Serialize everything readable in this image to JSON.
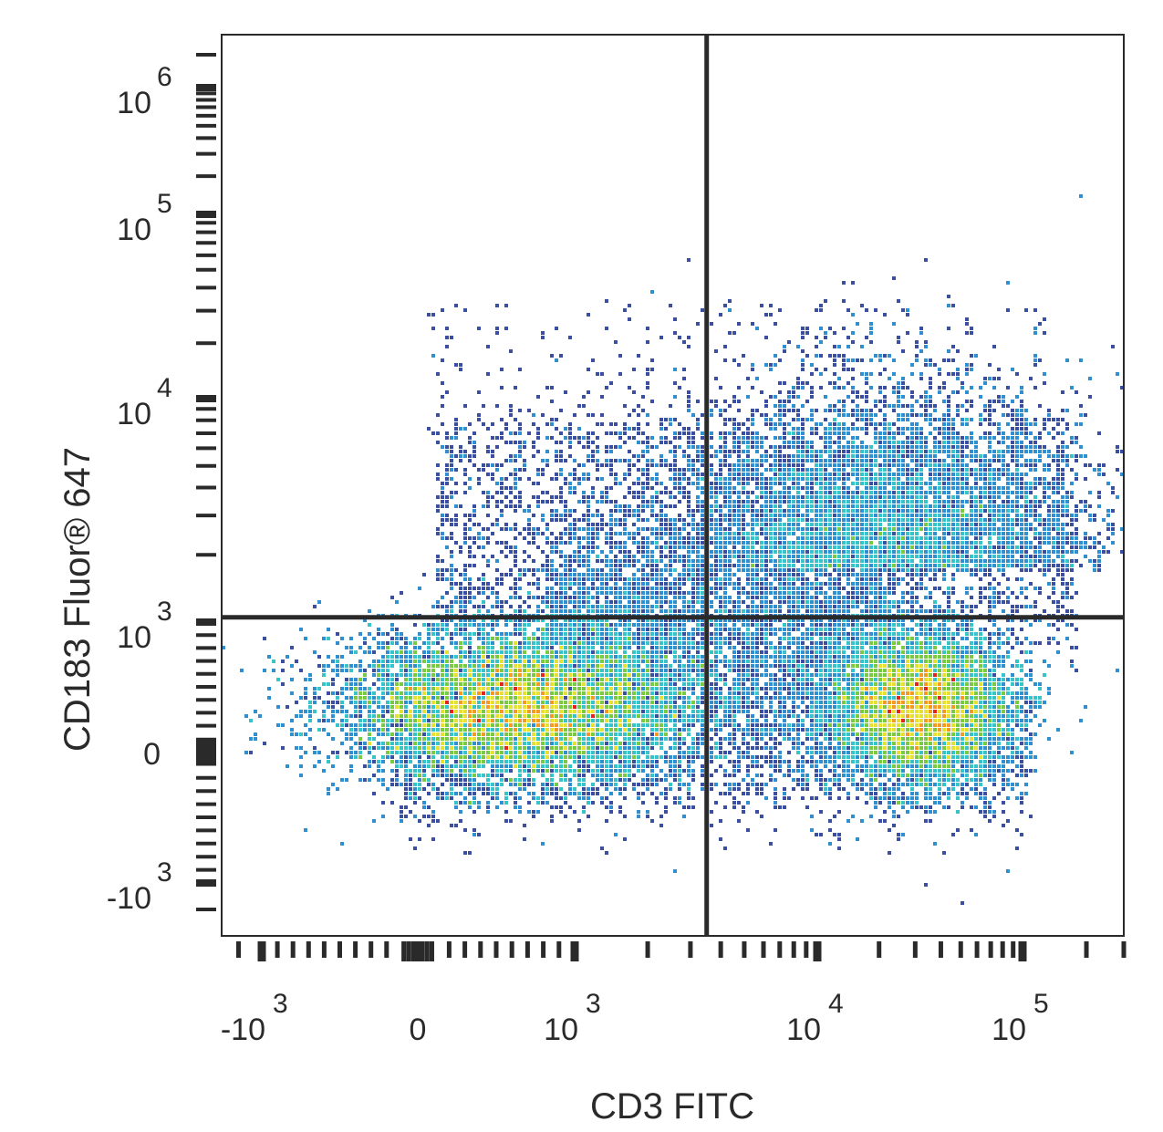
{
  "chart_data": {
    "type": "scatter",
    "subtype": "flow-cytometry-density-plot",
    "xlabel": "CD3 FITC",
    "ylabel": "CD183  Fluor® 647",
    "x_scale": "biexponential",
    "y_scale": "biexponential",
    "xlim": [
      -3000,
      300000
    ],
    "ylim": [
      -3000,
      1500000
    ],
    "x_ticks": [
      {
        "value": -1000,
        "base": "-10",
        "exp": "3"
      },
      {
        "value": 0,
        "base": "0",
        "exp": ""
      },
      {
        "value": 1000,
        "base": "10",
        "exp": "3"
      },
      {
        "value": 10000,
        "base": "10",
        "exp": "4"
      },
      {
        "value": 100000,
        "base": "10",
        "exp": "5"
      }
    ],
    "y_ticks": [
      {
        "value": -1000,
        "base": "-10",
        "exp": "3"
      },
      {
        "value": 0,
        "base": "0",
        "exp": ""
      },
      {
        "value": 1000,
        "base": "10",
        "exp": "3"
      },
      {
        "value": 10000,
        "base": "10",
        "exp": "4"
      },
      {
        "value": 100000,
        "base": "10",
        "exp": "5"
      },
      {
        "value": 1000000,
        "base": "10",
        "exp": "6"
      }
    ],
    "quadrant_gate": {
      "x": 3500,
      "y": 1050
    },
    "populations": [
      {
        "name_hidden": true,
        "center": {
          "x": 600,
          "y": 350
        },
        "peak": "high",
        "spread_x": 1.0,
        "spread_y": 0.55
      },
      {
        "name_hidden": true,
        "center": {
          "x": 32000,
          "y": 350
        },
        "peak": "high",
        "spread_x": 0.5,
        "spread_y": 0.55
      },
      {
        "name_hidden": true,
        "center": {
          "x": 22000,
          "y": 2500
        },
        "peak": "low",
        "spread_x": 0.9,
        "spread_y": 1.0
      }
    ],
    "density_colors": [
      "#3b4fa0",
      "#2f8fcf",
      "#37c4c8",
      "#7ac943",
      "#e6e032",
      "#f29a22",
      "#e3231c"
    ],
    "grid": false,
    "legend": "none"
  }
}
